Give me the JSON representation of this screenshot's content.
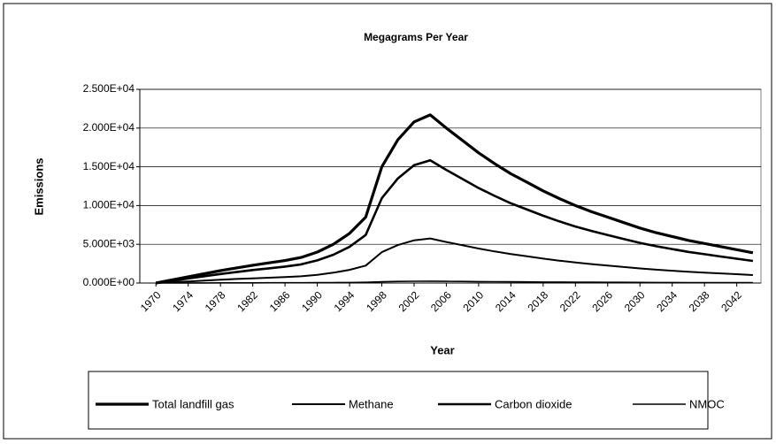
{
  "chart_data": {
    "type": "line",
    "title": "Megagrams Per Year",
    "x_label": "Year",
    "y_label": "Emissions",
    "x": [
      1970,
      1972,
      1974,
      1976,
      1978,
      1980,
      1982,
      1984,
      1986,
      1988,
      1990,
      1992,
      1994,
      1996,
      1998,
      2000,
      2002,
      2004,
      2006,
      2008,
      2010,
      2012,
      2014,
      2016,
      2018,
      2020,
      2022,
      2024,
      2026,
      2028,
      2030,
      2032,
      2034,
      2036,
      2038,
      2040,
      2042,
      2044
    ],
    "xlim": [
      1968,
      2045
    ],
    "xticks": [
      1970,
      1974,
      1978,
      1982,
      1986,
      1990,
      1994,
      1998,
      2002,
      2006,
      2010,
      2014,
      2018,
      2022,
      2026,
      2030,
      2034,
      2038,
      2042
    ],
    "ylim": [
      0,
      25000
    ],
    "yticks": [
      {
        "value": 0,
        "label": "0.000E+00"
      },
      {
        "value": 5000,
        "label": "5.000E+03"
      },
      {
        "value": 10000,
        "label": "1.000E+04"
      },
      {
        "value": 15000,
        "label": "1.500E+04"
      },
      {
        "value": 20000,
        "label": "2.000E+04"
      },
      {
        "value": 25000,
        "label": "2.500E+04"
      }
    ],
    "grid": true,
    "legend": "bottom",
    "series": [
      {
        "name": "Total landfill gas",
        "color": "#000000",
        "values": [
          0,
          400,
          800,
          1200,
          1600,
          1950,
          2300,
          2600,
          2900,
          3300,
          4000,
          5000,
          6400,
          8500,
          15000,
          18500,
          20800,
          21700,
          20000,
          18400,
          16800,
          15400,
          14100,
          13000,
          11900,
          10900,
          10000,
          9200,
          8500,
          7800,
          7100,
          6500,
          6000,
          5500,
          5100,
          4700,
          4300,
          3900
        ]
      },
      {
        "name": "Methane",
        "color": "#000000",
        "values": [
          0,
          110,
          210,
          320,
          420,
          520,
          610,
          690,
          770,
          870,
          1060,
          1330,
          1700,
          2250,
          3980,
          4900,
          5510,
          5750,
          5300,
          4880,
          4450,
          4080,
          3740,
          3450,
          3150,
          2890,
          2650,
          2440,
          2250,
          2070,
          1880,
          1720,
          1590,
          1460,
          1350,
          1250,
          1140,
          1030
        ]
      },
      {
        "name": "Carbon dioxide",
        "color": "#000000",
        "values": [
          0,
          290,
          580,
          880,
          1170,
          1420,
          1680,
          1900,
          2120,
          2410,
          2920,
          3650,
          4670,
          6200,
          10950,
          13500,
          15200,
          15840,
          14600,
          13430,
          12260,
          11240,
          10290,
          9490,
          8690,
          7960,
          7300,
          6720,
          6200,
          5690,
          5180,
          4750,
          4380,
          4020,
          3720,
          3430,
          3140,
          2850
        ]
      },
      {
        "name": "NMOC",
        "color": "#000000",
        "values": [
          0,
          4,
          9,
          13,
          18,
          21,
          25,
          29,
          32,
          36,
          44,
          55,
          70,
          94,
          165,
          204,
          229,
          239,
          220,
          202,
          185,
          169,
          155,
          143,
          131,
          120,
          110,
          101,
          94,
          86,
          78,
          72,
          66,
          61,
          56,
          52,
          47,
          43
        ]
      }
    ]
  }
}
